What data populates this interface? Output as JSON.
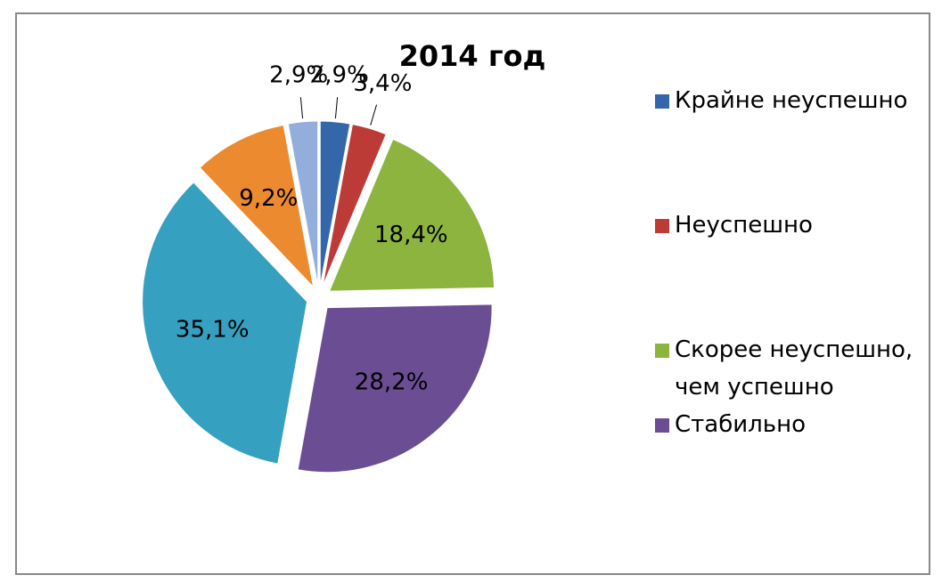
{
  "chart_data": {
    "type": "pie",
    "title": "2014 год",
    "categories": [
      "Крайне неуспешно",
      "Неуспешно",
      "Скорее неуспешно, чем успешно",
      "Стабильно",
      null,
      null,
      null
    ],
    "values": [
      2.9,
      3.4,
      18.4,
      28.2,
      35.1,
      9.2,
      2.9
    ],
    "value_labels": [
      "2,9%",
      "3,4%",
      "18,4%",
      "28,2%",
      "35,1%",
      "9,2%",
      "2,9%"
    ],
    "colors": [
      "#3467a9",
      "#bd3b37",
      "#8db43f",
      "#6b4d94",
      "#36a0c0",
      "#ec8a2f",
      "#94aedb"
    ],
    "legend": "right"
  }
}
